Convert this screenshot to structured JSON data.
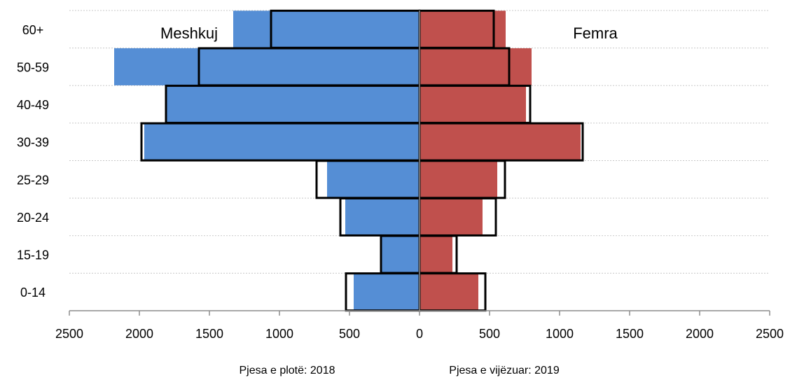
{
  "chart_data": {
    "type": "bar",
    "orientation": "horizontal",
    "layout": "population-pyramid",
    "categories": [
      "0-14",
      "15-19",
      "20-24",
      "25-29",
      "30-39",
      "40-49",
      "50-59",
      "60+"
    ],
    "xlim": [
      -2500,
      2500
    ],
    "xticks": [
      -2500,
      -2000,
      -1500,
      -1000,
      -500,
      0,
      500,
      1000,
      1500,
      2000,
      2500
    ],
    "xtick_labels": [
      "2500",
      "2000",
      "1500",
      "1000",
      "500",
      "0",
      "500",
      "1000",
      "1500",
      "2000",
      "2500"
    ],
    "grid": "horizontal dotted",
    "side_labels": {
      "left": "Meshkuj",
      "right": "Femra"
    },
    "legend_notes": {
      "filled": "Pjesa e plotë: 2018",
      "outlined": "Pjesa e vijëzuar: 2019"
    },
    "series": [
      {
        "group": "Meshkuj",
        "year": "2018",
        "style": "filled",
        "color": "#558ED5",
        "values": [
          470,
          275,
          530,
          660,
          1965,
          1810,
          2180,
          1330
        ]
      },
      {
        "group": "Femra",
        "year": "2018",
        "style": "filled",
        "color": "#C0504D",
        "values": [
          420,
          235,
          450,
          555,
          1150,
          760,
          800,
          615
        ]
      },
      {
        "group": "Meshkuj",
        "year": "2019",
        "style": "outlined",
        "color": "#000000",
        "values": [
          525,
          275,
          565,
          735,
          1985,
          1810,
          1575,
          1060
        ]
      },
      {
        "group": "Femra",
        "year": "2019",
        "style": "outlined",
        "color": "#000000",
        "values": [
          470,
          265,
          545,
          610,
          1165,
          790,
          640,
          530
        ]
      }
    ]
  }
}
